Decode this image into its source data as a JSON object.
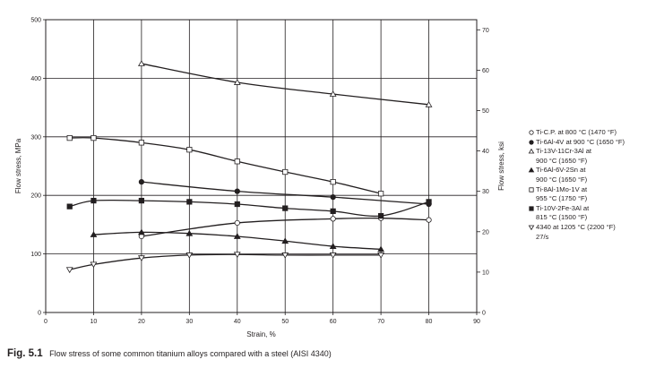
{
  "chart_data": {
    "type": "line",
    "xlabel": "Strain, %",
    "ylabel": "Flow stress, MPa",
    "y2label": "Flow stress, ksi",
    "xlim": [
      0,
      90
    ],
    "ylim": [
      0,
      500
    ],
    "y2lim": [
      0,
      72.5
    ],
    "xticks": [
      0,
      10,
      20,
      30,
      40,
      50,
      60,
      70,
      80,
      90
    ],
    "yticks": [
      0,
      100,
      200,
      300,
      400,
      500
    ],
    "y2ticks": [
      0,
      10,
      20,
      30,
      40,
      50,
      60,
      70
    ],
    "grid": "horizontal and vertical",
    "legend_position": "right",
    "series": [
      {
        "name": "Ti-C.P. at 800 °C (1470 °F)",
        "marker": "open-circle",
        "x": [
          20,
          40,
          60,
          70,
          80
        ],
        "y": [
          130,
          153,
          160,
          161,
          158
        ]
      },
      {
        "name": "Ti-6Al-4V at 900 °C (1650 °F)",
        "marker": "filled-circle",
        "x": [
          20,
          40,
          60,
          80
        ],
        "y": [
          223,
          207,
          197,
          185
        ]
      },
      {
        "name": "Ti-13V-11Cr-3Al at\n900 °C (1650 °F)",
        "marker": "open-triangle",
        "x": [
          20,
          40,
          60,
          80
        ],
        "y": [
          425,
          393,
          373,
          355
        ]
      },
      {
        "name": "Ti-6Al-6V-2Sn at\n900 °C (1650 °F)",
        "marker": "filled-triangle",
        "x": [
          10,
          20,
          30,
          40,
          50,
          60,
          70
        ],
        "y": [
          133,
          137,
          135,
          130,
          122,
          113,
          108
        ]
      },
      {
        "name": "Ti-8Al-1Mo-1V at\n955 °C (1750 °F)",
        "marker": "open-square",
        "x": [
          5,
          10,
          20,
          30,
          40,
          50,
          60,
          70
        ],
        "y": [
          298,
          298,
          290,
          278,
          258,
          240,
          223,
          203
        ]
      },
      {
        "name": "Ti-10V-2Fe-3Al at\n815 °C (1500 °F)",
        "marker": "filled-square",
        "x": [
          5,
          10,
          20,
          30,
          40,
          50,
          60,
          70,
          80
        ],
        "y": [
          181,
          191,
          191,
          189,
          185,
          178,
          173,
          165,
          189
        ]
      },
      {
        "name": "4340 at 1205 °C (2200 °F)\n27/s",
        "marker": "open-inverted-triangle",
        "x": [
          5,
          10,
          20,
          30,
          40,
          50,
          60,
          70
        ],
        "y": [
          73,
          82,
          93,
          98,
          99,
          98,
          98,
          98
        ]
      }
    ]
  },
  "caption": {
    "figure_number": "Fig. 5.1",
    "text": "Flow stress of some common titanium alloys compared with a steel (AISI 4340)"
  }
}
